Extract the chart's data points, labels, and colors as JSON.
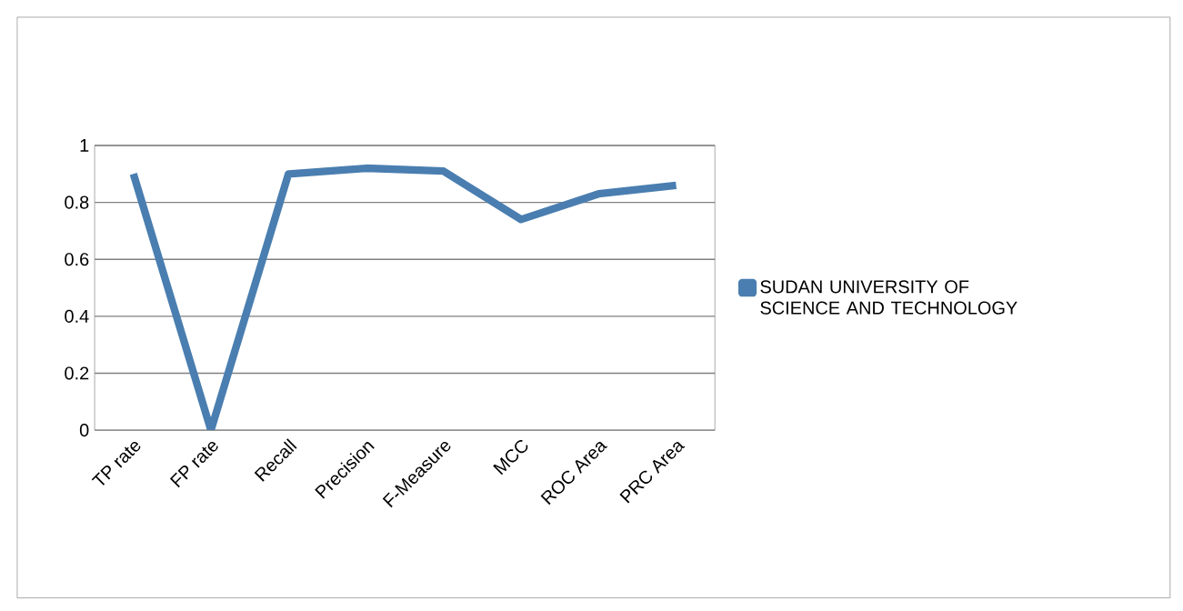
{
  "chart_data": {
    "type": "line",
    "categories": [
      "TP rate",
      "FP rate",
      "Recall",
      "Precision",
      "F-Measure",
      "MCC",
      "ROC Area",
      "PRC Area"
    ],
    "series": [
      {
        "name": "SUDAN UNIVERSITY OF SCIENCE AND TECHNOLOGY",
        "color": "#4a7eb0",
        "values": [
          0.9,
          0.0,
          0.9,
          0.92,
          0.91,
          0.74,
          0.83,
          0.86
        ]
      }
    ],
    "ylim": [
      0,
      1
    ],
    "yticks": [
      0,
      0.2,
      0.4,
      0.6,
      0.8,
      1
    ],
    "grid": "y",
    "legend": "right",
    "marker": "none",
    "line_style": "solid"
  }
}
